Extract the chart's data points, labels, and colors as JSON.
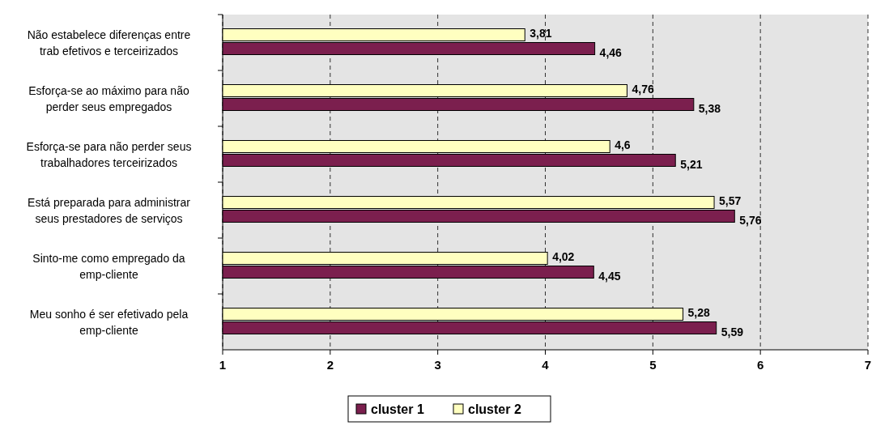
{
  "chart_data": {
    "type": "bar",
    "orientation": "horizontal",
    "categories": [
      "Não estabelece diferenças entre trab efetivos e terceirizados",
      "Esforça-se ao máximo para não perder seus empregados",
      "Esforça-se para não perder seus trabalhadores terceirizados",
      "Está preparada para administrar seus prestadores de serviços",
      "Sinto-me como empregado da emp-cliente",
      "Meu sonho é ser efetivado pela emp-cliente"
    ],
    "series": [
      {
        "name": "cluster 1",
        "color": "#7b1f4e",
        "values": [
          4.46,
          5.38,
          5.21,
          5.76,
          4.45,
          5.59
        ],
        "value_labels": [
          "4,46",
          "5,38",
          "5,21",
          "5,76",
          "4,45",
          "5,59"
        ]
      },
      {
        "name": "cluster 2",
        "color": "#ffffc0",
        "values": [
          3.81,
          4.76,
          4.6,
          5.57,
          4.02,
          5.28
        ],
        "value_labels": [
          "3,81",
          "4,76",
          "4,6",
          "5,57",
          "4,02",
          "5,28"
        ]
      }
    ],
    "xlim": [
      1,
      7
    ],
    "xticks": [
      1,
      2,
      3,
      4,
      5,
      6,
      7
    ],
    "grid": "x",
    "legend": "bottom"
  }
}
